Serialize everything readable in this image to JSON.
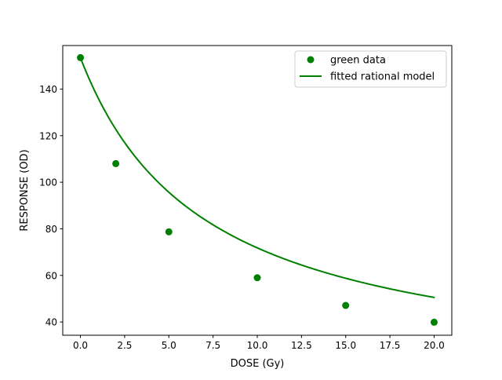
{
  "chart_data": {
    "type": "scatter",
    "title": "",
    "xlabel": "DOSE (Gy)",
    "ylabel": "RESPONSE (OD)",
    "xlim": [
      -1.0,
      21.0
    ],
    "ylim": [
      34.3,
      158.7
    ],
    "xticks": [
      0.0,
      2.5,
      5.0,
      7.5,
      10.0,
      12.5,
      15.0,
      17.5,
      20.0
    ],
    "xtick_labels": [
      "0.0",
      "2.5",
      "5.0",
      "7.5",
      "10.0",
      "12.5",
      "15.0",
      "17.5",
      "20.0"
    ],
    "yticks": [
      40,
      60,
      80,
      100,
      120,
      140
    ],
    "ytick_labels": [
      "40",
      "60",
      "80",
      "100",
      "120",
      "140"
    ],
    "grid": false,
    "legend_position": "top-right",
    "series": [
      {
        "name": "green data",
        "kind": "scatter",
        "color": "#008000",
        "x": [
          0,
          2,
          5,
          10,
          15,
          20
        ],
        "y": [
          153.5,
          108.0,
          78.7,
          59.0,
          47.1,
          39.9
        ]
      },
      {
        "name": "fitted rational model",
        "kind": "line",
        "color": "#008000",
        "model": {
          "form": "(a + b*x) / (1 + c*x)",
          "a": 153.5,
          "b": 2.03,
          "c": 0.142
        },
        "x_range": [
          0,
          20
        ]
      }
    ]
  }
}
